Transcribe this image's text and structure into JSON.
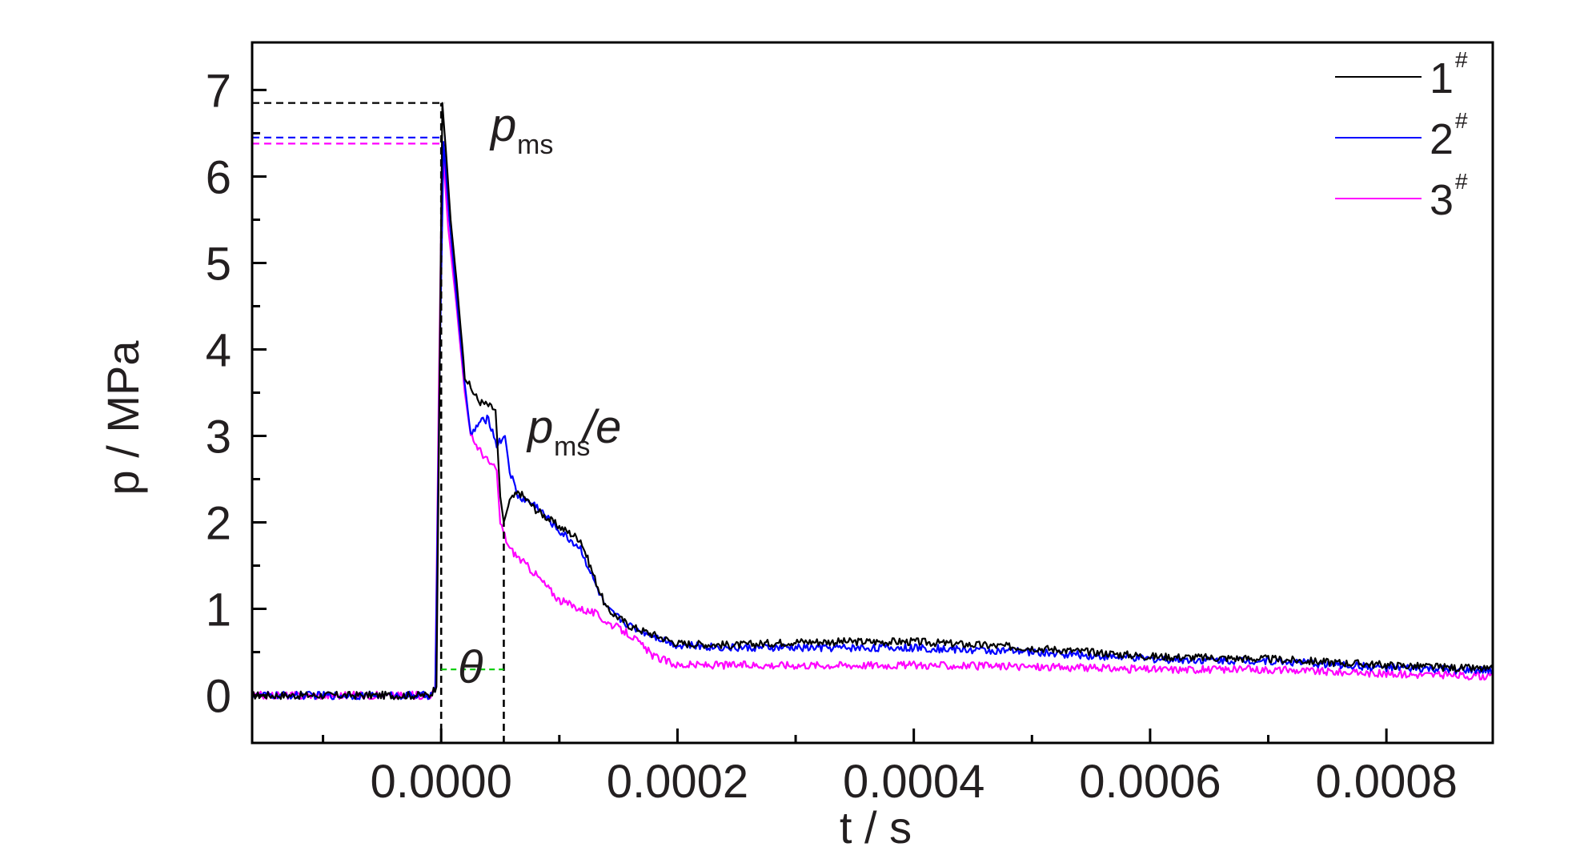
{
  "chart_data": {
    "type": "line",
    "xlabel": "t / s",
    "ylabel": "p / MPa",
    "xlim": [
      -0.00016,
      0.00089
    ],
    "ylim": [
      -0.55,
      7.55
    ],
    "x_ticks": [
      0.0,
      0.0002,
      0.0004,
      0.0006,
      0.0008
    ],
    "x_tick_labels": [
      "0.0000",
      "0.0002",
      "0.0004",
      "0.0006",
      "0.0008"
    ],
    "x_minor_ticks": [
      -0.0001,
      0.0001,
      0.0003,
      0.0005,
      0.0007
    ],
    "y_ticks": [
      0,
      1,
      2,
      3,
      4,
      5,
      6,
      7
    ],
    "y_tick_labels": [
      "0",
      "1",
      "2",
      "3",
      "4",
      "5",
      "6",
      "7"
    ],
    "grid": false,
    "legend_position": "top-right",
    "series": [
      {
        "name": "1",
        "superscript": "#",
        "color": "#000000",
        "x": [
          -0.00016,
          -0.00012,
          -8e-05,
          -4e-05,
          -1e-05,
          -4e-06,
          1e-06,
          4e-06,
          8e-06,
          1.3e-05,
          2e-05,
          2.5e-05,
          3.2e-05,
          4e-05,
          4.6e-05,
          5e-05,
          5.3e-05,
          5.8e-05,
          6.6e-05,
          8e-05,
          0.0001,
          0.000118,
          0.00013,
          0.00014,
          0.00016,
          0.0002,
          0.00025,
          0.0003,
          0.0004,
          0.0005,
          0.0006,
          0.0007,
          0.0008,
          0.00089
        ],
        "y": [
          0.0,
          0.0,
          0.0,
          0.0,
          0.0,
          0.1,
          6.85,
          6.3,
          5.5,
          4.8,
          3.7,
          3.55,
          3.4,
          3.35,
          3.3,
          2.3,
          2.0,
          2.25,
          2.35,
          2.15,
          1.95,
          1.8,
          1.35,
          1.0,
          0.8,
          0.6,
          0.58,
          0.62,
          0.62,
          0.55,
          0.45,
          0.42,
          0.35,
          0.3
        ]
      },
      {
        "name": "2",
        "superscript": "#",
        "color": "#0000ff",
        "x": [
          -0.00016,
          -0.00012,
          -8e-05,
          -4e-05,
          -1e-05,
          -5e-06,
          -1e-06,
          2e-06,
          7e-06,
          1.3e-05,
          2e-05,
          2.5e-05,
          3.2e-05,
          4e-05,
          4.7e-05,
          5.4e-05,
          5.8e-05,
          6.5e-05,
          8e-05,
          0.0001,
          0.000118,
          0.00013,
          0.00014,
          0.00016,
          0.0002,
          0.00025,
          0.0003,
          0.0004,
          0.0005,
          0.0006,
          0.0007,
          0.0008,
          0.00089
        ],
        "y": [
          0.0,
          0.0,
          0.0,
          0.0,
          0.0,
          0.05,
          4.0,
          6.4,
          5.5,
          4.6,
          3.6,
          3.0,
          3.15,
          3.2,
          2.9,
          3.0,
          2.6,
          2.3,
          2.2,
          1.9,
          1.7,
          1.3,
          1.0,
          0.8,
          0.58,
          0.55,
          0.55,
          0.55,
          0.5,
          0.42,
          0.4,
          0.32,
          0.28
        ]
      },
      {
        "name": "3",
        "superscript": "#",
        "color": "#ff00ff",
        "x": [
          -0.00016,
          -0.00012,
          -8e-05,
          -4e-05,
          -1e-05,
          -5e-06,
          -2e-06,
          1e-06,
          6e-06,
          1.3e-05,
          2e-05,
          2.5e-05,
          3.2e-05,
          4e-05,
          4.7e-05,
          5e-05,
          5.5e-05,
          5.8e-05,
          6.5e-05,
          8e-05,
          0.0001,
          0.000118,
          0.00013,
          0.00014,
          0.00016,
          0.00018,
          0.0002,
          0.00025,
          0.0003,
          0.0004,
          0.0005,
          0.0006,
          0.0007,
          0.0008,
          0.00089
        ],
        "y": [
          0.0,
          0.0,
          0.0,
          0.0,
          0.0,
          0.05,
          3.5,
          6.38,
          5.4,
          4.5,
          3.5,
          3.0,
          2.85,
          2.7,
          2.6,
          2.0,
          1.8,
          1.7,
          1.6,
          1.4,
          1.1,
          1.0,
          0.95,
          0.85,
          0.7,
          0.45,
          0.35,
          0.35,
          0.35,
          0.35,
          0.33,
          0.3,
          0.3,
          0.25,
          0.22
        ]
      }
    ],
    "annotations": {
      "pms": {
        "main": "p",
        "sub": "ms"
      },
      "pms_e": {
        "main": "p",
        "sub": "ms",
        "suffix": "/e"
      },
      "theta": "θ"
    },
    "reference_lines": [
      {
        "kind": "peak",
        "series": "1",
        "y": 6.85,
        "color": "#000000"
      },
      {
        "kind": "peak",
        "series": "2",
        "y": 6.45,
        "color": "#0000ff"
      },
      {
        "kind": "peak",
        "series": "3",
        "y": 6.38,
        "color": "#ff00ff"
      },
      {
        "kind": "time",
        "x": 0.0,
        "color": "#000000"
      },
      {
        "kind": "time",
        "x": 5.3e-05,
        "color": "#000000"
      },
      {
        "kind": "theta",
        "x": [
          0.0,
          5.3e-05
        ],
        "y": 0.3,
        "color": "#00cc00"
      }
    ]
  }
}
